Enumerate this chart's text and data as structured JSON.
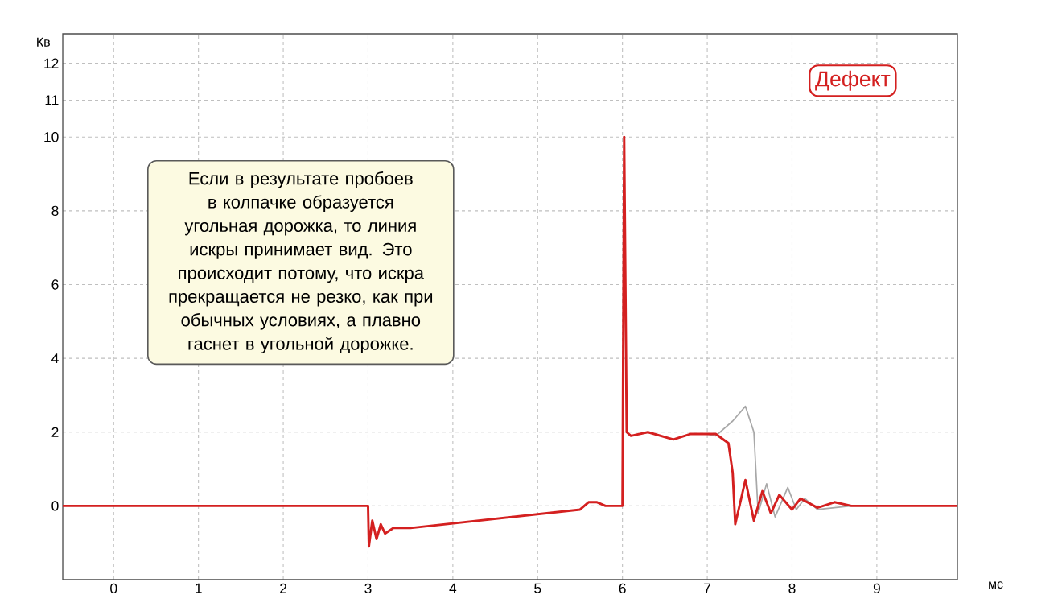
{
  "chart_data": {
    "type": "line",
    "xlabel": "мс",
    "ylabel": "Кв",
    "annotations": [
      "Если в результате пробоев в колпачке образуется угольная дорожка, то линия искры принимает вид. Это происходит потому, что искра прекращается не резко, как при обычных условиях, а плавно гаснет в угольной дорожке.",
      "Дефект"
    ],
    "xlim": [
      -0.6,
      9.95
    ],
    "xticks": [
      0,
      1,
      2,
      3,
      4,
      5,
      6,
      7,
      8,
      9
    ],
    "ylim": [
      -2,
      12.8
    ],
    "yticks": [
      0,
      2,
      4,
      6,
      8,
      10,
      11,
      12
    ],
    "grid": true,
    "marker": "none",
    "line_style": "solid",
    "series": [
      {
        "color": "#a8a8a8",
        "x": [
          7.0,
          7.1,
          7.3,
          7.45,
          7.55,
          7.6,
          7.7,
          7.8,
          7.95,
          8.05,
          8.15,
          8.3,
          8.5,
          8.7,
          9.0
        ],
        "values": [
          1.95,
          1.9,
          2.3,
          2.7,
          2.0,
          -0.2,
          0.6,
          -0.3,
          0.5,
          -0.1,
          0.2,
          -0.1,
          null,
          0,
          0
        ]
      },
      {
        "color": "#d42020",
        "x": [
          -0.6,
          3.0,
          3.01,
          3.05,
          3.1,
          3.15,
          3.2,
          3.3,
          3.5,
          5.5,
          5.6,
          5.7,
          5.8,
          6.0,
          6.02,
          6.05,
          6.1,
          6.3,
          6.6,
          6.8,
          7.1,
          7.25,
          7.3,
          7.33,
          7.45,
          7.55,
          7.65,
          7.75,
          7.85,
          8.0,
          8.1,
          8.3,
          8.5,
          8.7,
          9.95
        ],
        "values": [
          0,
          0,
          -1.1,
          -0.4,
          -0.9,
          -0.5,
          -0.75,
          -0.6,
          -0.6,
          -0.1,
          0.1,
          0.1,
          0,
          0,
          10,
          2.0,
          1.9,
          2.0,
          1.8,
          1.95,
          1.95,
          1.7,
          0.9,
          -0.5,
          0.7,
          -0.4,
          0.4,
          -0.2,
          0.3,
          -0.1,
          0.2,
          -0.05,
          0.1,
          0,
          0
        ]
      }
    ]
  }
}
